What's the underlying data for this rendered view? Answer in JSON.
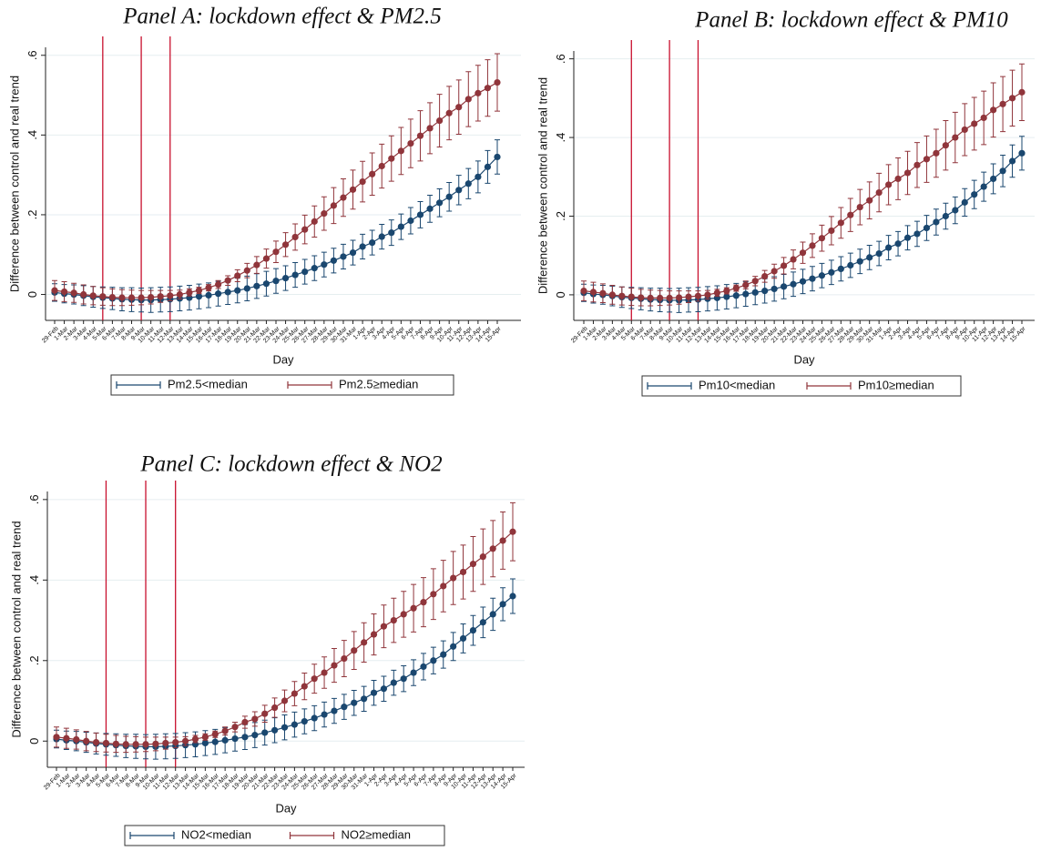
{
  "chart_data": [
    {
      "type": "line",
      "title": "Panel A: lockdown effect & PM2.5",
      "x_label": "Day",
      "y_label": "Difference between control and real trend",
      "categories": [
        "29-Feb",
        "1-Mar",
        "2-Mar",
        "3-Mar",
        "4-Mar",
        "5-Mar",
        "6-Mar",
        "7-Mar",
        "8-Mar",
        "9-Mar",
        "10-Mar",
        "11-Mar",
        "12-Mar",
        "13-Mar",
        "14-Mar",
        "15-Mar",
        "16-Mar",
        "17-Mar",
        "18-Mar",
        "19-Mar",
        "20-Mar",
        "21-Mar",
        "22-Mar",
        "23-Mar",
        "24-Mar",
        "25-Mar",
        "26-Mar",
        "27-Mar",
        "28-Mar",
        "29-Mar",
        "30-Mar",
        "31-Mar",
        "1-Apr",
        "2-Apr",
        "3-Apr",
        "4-Apr",
        "5-Apr",
        "6-Apr",
        "7-Apr",
        "8-Apr",
        "9-Apr",
        "10-Apr",
        "11-Apr",
        "12-Apr",
        "13-Apr",
        "14-Apr",
        "15-Apr"
      ],
      "series": [
        {
          "name": "Pm2.5<median",
          "color": "#1a476f",
          "values": [
            0.005,
            0.002,
            0.0,
            -0.003,
            -0.006,
            -0.008,
            -0.01,
            -0.012,
            -0.013,
            -0.014,
            -0.014,
            -0.013,
            -0.012,
            -0.01,
            -0.008,
            -0.005,
            -0.002,
            0.002,
            0.006,
            0.01,
            0.015,
            0.021,
            0.027,
            0.034,
            0.041,
            0.049,
            0.057,
            0.066,
            0.075,
            0.085,
            0.095,
            0.105,
            0.12,
            0.13,
            0.145,
            0.155,
            0.17,
            0.185,
            0.2,
            0.215,
            0.23,
            0.245,
            0.262,
            0.278,
            0.295,
            0.32,
            0.345
          ],
          "errors": [
            0.022,
            0.023,
            0.024,
            0.025,
            0.026,
            0.027,
            0.028,
            0.029,
            0.03,
            0.03,
            0.031,
            0.031,
            0.031,
            0.031,
            0.031,
            0.031,
            0.031,
            0.031,
            0.031,
            0.031,
            0.031,
            0.031,
            0.031,
            0.031,
            0.031,
            0.031,
            0.031,
            0.031,
            0.031,
            0.031,
            0.031,
            0.031,
            0.031,
            0.031,
            0.031,
            0.032,
            0.032,
            0.033,
            0.033,
            0.034,
            0.035,
            0.036,
            0.037,
            0.038,
            0.04,
            0.041,
            0.043
          ]
        },
        {
          "name": "Pm2.5≥median",
          "color": "#90353b",
          "values": [
            0.01,
            0.007,
            0.004,
            0.0,
            -0.003,
            -0.005,
            -0.007,
            -0.008,
            -0.008,
            -0.008,
            -0.007,
            -0.005,
            -0.003,
            0.0,
            0.005,
            0.01,
            0.017,
            0.025,
            0.035,
            0.047,
            0.06,
            0.074,
            0.09,
            0.107,
            0.125,
            0.144,
            0.163,
            0.183,
            0.203,
            0.223,
            0.243,
            0.263,
            0.283,
            0.302,
            0.322,
            0.341,
            0.36,
            0.379,
            0.398,
            0.417,
            0.436,
            0.455,
            0.47,
            0.49,
            0.505,
            0.518,
            0.532
          ],
          "errors": [
            0.025,
            0.025,
            0.024,
            0.024,
            0.023,
            0.022,
            0.021,
            0.02,
            0.019,
            0.018,
            0.017,
            0.015,
            0.013,
            0.011,
            0.009,
            0.008,
            0.008,
            0.01,
            0.012,
            0.015,
            0.018,
            0.021,
            0.024,
            0.027,
            0.03,
            0.033,
            0.036,
            0.039,
            0.042,
            0.045,
            0.047,
            0.049,
            0.051,
            0.053,
            0.055,
            0.057,
            0.059,
            0.061,
            0.063,
            0.064,
            0.066,
            0.067,
            0.068,
            0.069,
            0.07,
            0.071,
            0.072
          ]
        }
      ],
      "ylim": [
        -0.065,
        0.62
      ],
      "yticks": [
        0,
        {
          "value": 0.2,
          "label": ".2"
        },
        {
          "value": 0.4,
          "label": ".4"
        },
        {
          "value": 0.6,
          "label": ".6"
        }
      ],
      "grid": true,
      "vlines": [
        "5-Mar",
        "9-Mar",
        "12-Mar"
      ],
      "vline_color": "#c8102e"
    },
    {
      "type": "line",
      "title": "Panel B: lockdown effect & PM10",
      "x_label": "Day",
      "y_label": "Difference between control and real trend",
      "categories": [
        "29-Feb",
        "1-Mar",
        "2-Mar",
        "3-Mar",
        "4-Mar",
        "5-Mar",
        "6-Mar",
        "7-Mar",
        "8-Mar",
        "9-Mar",
        "10-Mar",
        "11-Mar",
        "12-Mar",
        "13-Mar",
        "14-Mar",
        "15-Mar",
        "16-Mar",
        "17-Mar",
        "18-Mar",
        "19-Mar",
        "20-Mar",
        "21-Mar",
        "22-Mar",
        "23-Mar",
        "24-Mar",
        "25-Mar",
        "26-Mar",
        "27-Mar",
        "28-Mar",
        "29-Mar",
        "30-Mar",
        "31-Mar",
        "1-Apr",
        "2-Apr",
        "3-Apr",
        "4-Apr",
        "5-Apr",
        "6-Apr",
        "7-Apr",
        "8-Apr",
        "9-Apr",
        "10-Apr",
        "11-Apr",
        "12-Apr",
        "13-Apr",
        "14-Apr",
        "15-Apr"
      ],
      "series": [
        {
          "name": "Pm10<median",
          "color": "#1a476f",
          "values": [
            0.005,
            0.002,
            0.0,
            -0.003,
            -0.006,
            -0.008,
            -0.01,
            -0.012,
            -0.013,
            -0.014,
            -0.014,
            -0.013,
            -0.012,
            -0.01,
            -0.008,
            -0.005,
            -0.002,
            0.002,
            0.006,
            0.01,
            0.015,
            0.021,
            0.027,
            0.034,
            0.041,
            0.049,
            0.057,
            0.066,
            0.075,
            0.085,
            0.095,
            0.105,
            0.12,
            0.13,
            0.145,
            0.155,
            0.17,
            0.185,
            0.2,
            0.215,
            0.235,
            0.255,
            0.275,
            0.295,
            0.315,
            0.34,
            0.36
          ],
          "errors": [
            0.022,
            0.023,
            0.024,
            0.025,
            0.026,
            0.027,
            0.028,
            0.029,
            0.03,
            0.03,
            0.031,
            0.031,
            0.031,
            0.031,
            0.031,
            0.031,
            0.031,
            0.031,
            0.031,
            0.031,
            0.031,
            0.031,
            0.031,
            0.031,
            0.031,
            0.031,
            0.031,
            0.031,
            0.031,
            0.031,
            0.031,
            0.031,
            0.031,
            0.031,
            0.031,
            0.032,
            0.032,
            0.033,
            0.033,
            0.034,
            0.035,
            0.036,
            0.037,
            0.038,
            0.04,
            0.041,
            0.043
          ]
        },
        {
          "name": "Pm10≥median",
          "color": "#90353b",
          "values": [
            0.01,
            0.007,
            0.004,
            0.0,
            -0.003,
            -0.005,
            -0.007,
            -0.008,
            -0.008,
            -0.008,
            -0.007,
            -0.005,
            -0.003,
            0.0,
            0.005,
            0.01,
            0.017,
            0.025,
            0.035,
            0.047,
            0.06,
            0.074,
            0.09,
            0.107,
            0.125,
            0.144,
            0.163,
            0.183,
            0.203,
            0.223,
            0.24,
            0.26,
            0.28,
            0.295,
            0.31,
            0.33,
            0.345,
            0.36,
            0.38,
            0.4,
            0.42,
            0.435,
            0.45,
            0.47,
            0.485,
            0.5,
            0.515
          ],
          "errors": [
            0.025,
            0.025,
            0.024,
            0.024,
            0.023,
            0.022,
            0.021,
            0.02,
            0.019,
            0.018,
            0.017,
            0.015,
            0.013,
            0.011,
            0.009,
            0.008,
            0.008,
            0.01,
            0.012,
            0.015,
            0.018,
            0.021,
            0.024,
            0.027,
            0.03,
            0.033,
            0.036,
            0.039,
            0.042,
            0.045,
            0.047,
            0.049,
            0.051,
            0.053,
            0.055,
            0.057,
            0.059,
            0.061,
            0.063,
            0.064,
            0.066,
            0.067,
            0.068,
            0.069,
            0.07,
            0.071,
            0.072
          ]
        }
      ],
      "ylim": [
        -0.065,
        0.62
      ],
      "yticks": [
        0,
        {
          "value": 0.2,
          "label": ".2"
        },
        {
          "value": 0.4,
          "label": ".4"
        },
        {
          "value": 0.6,
          "label": ".6"
        }
      ],
      "grid": true,
      "vlines": [
        "5-Mar",
        "9-Mar",
        "12-Mar"
      ],
      "vline_color": "#c8102e"
    },
    {
      "type": "line",
      "title": "Panel C: lockdown effect & NO2",
      "x_label": "Day",
      "y_label": "Difference between control and real trend",
      "categories": [
        "29-Feb",
        "1-Mar",
        "2-Mar",
        "3-Mar",
        "4-Mar",
        "5-Mar",
        "6-Mar",
        "7-Mar",
        "8-Mar",
        "9-Mar",
        "10-Mar",
        "11-Mar",
        "12-Mar",
        "13-Mar",
        "14-Mar",
        "15-Mar",
        "16-Mar",
        "17-Mar",
        "18-Mar",
        "19-Mar",
        "20-Mar",
        "21-Mar",
        "22-Mar",
        "23-Mar",
        "24-Mar",
        "25-Mar",
        "26-Mar",
        "27-Mar",
        "28-Mar",
        "29-Mar",
        "30-Mar",
        "31-Mar",
        "1-Apr",
        "2-Apr",
        "3-Apr",
        "4-Apr",
        "5-Apr",
        "6-Apr",
        "7-Apr",
        "8-Apr",
        "9-Apr",
        "10-Apr",
        "11-Apr",
        "12-Apr",
        "13-Apr",
        "14-Apr",
        "15-Apr"
      ],
      "series": [
        {
          "name": "NO2<median",
          "color": "#1a476f",
          "values": [
            0.005,
            0.002,
            0.0,
            -0.003,
            -0.006,
            -0.008,
            -0.01,
            -0.012,
            -0.013,
            -0.014,
            -0.014,
            -0.013,
            -0.012,
            -0.01,
            -0.008,
            -0.005,
            -0.002,
            0.002,
            0.006,
            0.01,
            0.015,
            0.021,
            0.027,
            0.034,
            0.041,
            0.049,
            0.057,
            0.066,
            0.075,
            0.085,
            0.095,
            0.105,
            0.12,
            0.13,
            0.145,
            0.155,
            0.17,
            0.185,
            0.2,
            0.215,
            0.235,
            0.255,
            0.275,
            0.295,
            0.315,
            0.34,
            0.36
          ],
          "errors": [
            0.022,
            0.023,
            0.024,
            0.025,
            0.026,
            0.027,
            0.028,
            0.029,
            0.03,
            0.03,
            0.031,
            0.031,
            0.031,
            0.031,
            0.031,
            0.031,
            0.031,
            0.031,
            0.031,
            0.031,
            0.031,
            0.031,
            0.031,
            0.031,
            0.031,
            0.031,
            0.031,
            0.031,
            0.031,
            0.031,
            0.031,
            0.031,
            0.031,
            0.031,
            0.031,
            0.032,
            0.032,
            0.033,
            0.033,
            0.034,
            0.035,
            0.036,
            0.037,
            0.038,
            0.04,
            0.041,
            0.043
          ]
        },
        {
          "name": "NO2≥median",
          "color": "#90353b",
          "values": [
            0.01,
            0.007,
            0.004,
            0.0,
            -0.003,
            -0.005,
            -0.007,
            -0.008,
            -0.008,
            -0.008,
            -0.007,
            -0.005,
            -0.003,
            0.0,
            0.005,
            0.01,
            0.017,
            0.025,
            0.035,
            0.047,
            0.055,
            0.068,
            0.083,
            0.1,
            0.118,
            0.136,
            0.155,
            0.17,
            0.188,
            0.205,
            0.225,
            0.245,
            0.265,
            0.285,
            0.3,
            0.315,
            0.33,
            0.345,
            0.365,
            0.385,
            0.405,
            0.42,
            0.44,
            0.458,
            0.478,
            0.498,
            0.52
          ],
          "errors": [
            0.025,
            0.025,
            0.024,
            0.024,
            0.023,
            0.022,
            0.021,
            0.02,
            0.019,
            0.018,
            0.017,
            0.015,
            0.013,
            0.011,
            0.009,
            0.008,
            0.008,
            0.01,
            0.012,
            0.015,
            0.018,
            0.021,
            0.024,
            0.027,
            0.03,
            0.033,
            0.036,
            0.039,
            0.042,
            0.045,
            0.047,
            0.049,
            0.051,
            0.053,
            0.055,
            0.057,
            0.059,
            0.061,
            0.063,
            0.064,
            0.066,
            0.067,
            0.068,
            0.069,
            0.07,
            0.071,
            0.072
          ]
        }
      ],
      "ylim": [
        -0.065,
        0.62
      ],
      "yticks": [
        0,
        {
          "value": 0.2,
          "label": ".2"
        },
        {
          "value": 0.4,
          "label": ".4"
        },
        {
          "value": 0.6,
          "label": ".6"
        }
      ],
      "grid": true,
      "vlines": [
        "5-Mar",
        "9-Mar",
        "12-Mar"
      ],
      "vline_color": "#c8102e"
    }
  ]
}
